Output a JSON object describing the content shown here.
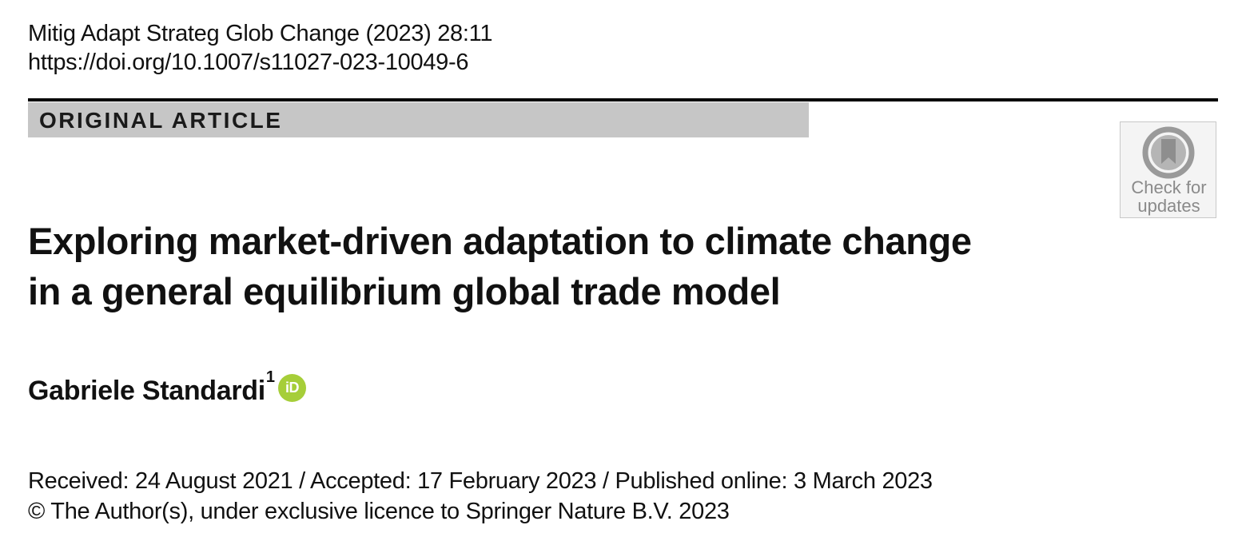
{
  "header": {
    "journal_ref": "Mitig Adapt Strateg Glob Change (2023) 28:11",
    "doi": "https://doi.org/10.1007/s11027-023-10049-6"
  },
  "article_type": "ORIGINAL ARTICLE",
  "crossmark": {
    "line1": "Check for",
    "line2": "updates",
    "icon": "crossmark-icon"
  },
  "title": {
    "line1": "Exploring market-driven adaptation to climate change",
    "line2": "in a general equilibrium global trade model"
  },
  "author": {
    "name": "Gabriele Standardi",
    "affiliation_mark": "1",
    "orcid_label": "iD",
    "icon": "orcid-icon"
  },
  "history": "Received: 24 August 2021 / Accepted: 17 February 2023 / Published online: 3 March 2023",
  "copyright": "© The Author(s), under exclusive licence to Springer Nature B.V. 2023",
  "colors": {
    "band": "#c6c6c6",
    "orcid": "#a6ce39",
    "crossmark_text": "#8a8a8a"
  }
}
